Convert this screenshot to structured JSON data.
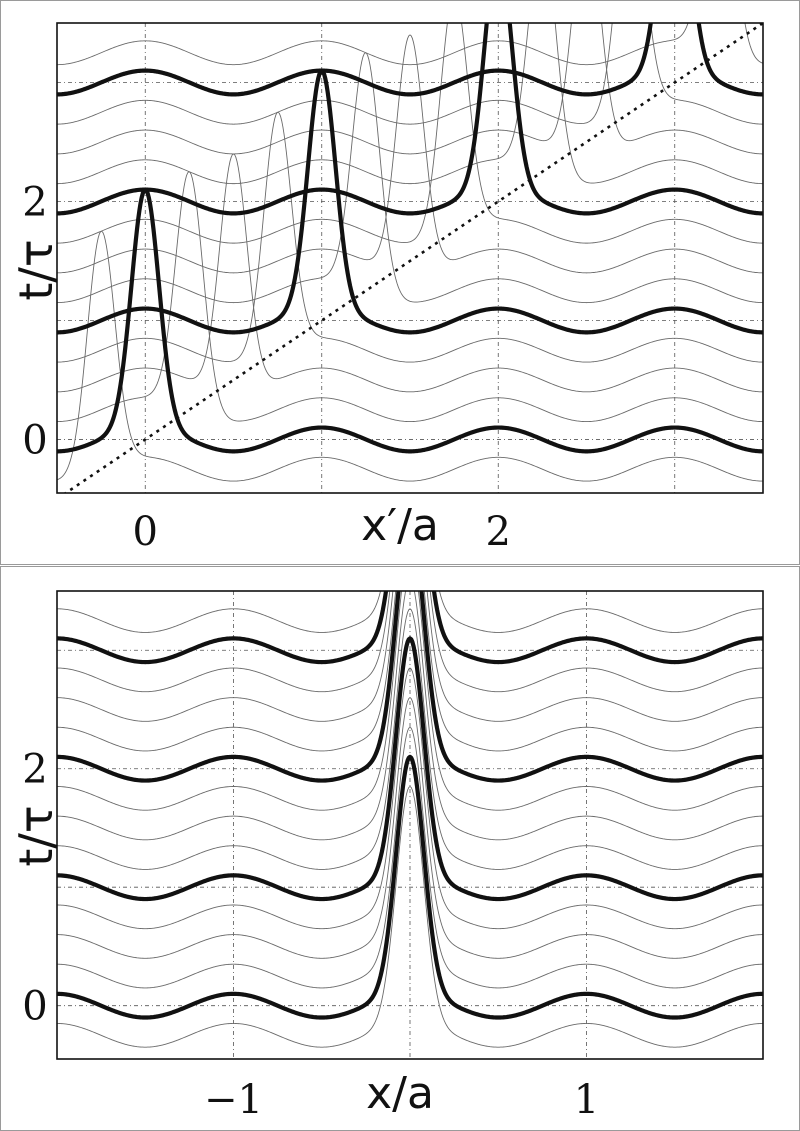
{
  "chart_data": [
    {
      "type": "line",
      "xlabel": "x′/a",
      "ylabel": "t/τ",
      "xlim": [
        -0.5,
        3.5
      ],
      "ylim": [
        -0.45,
        3.5
      ],
      "x_ticks": [
        {
          "value": 0,
          "label": "0"
        },
        {
          "value": 2,
          "label": "2"
        }
      ],
      "y_ticks": [
        {
          "value": 0,
          "label": "0"
        },
        {
          "value": 2,
          "label": "2"
        }
      ],
      "grid": true,
      "reference_line": {
        "style": "dotted",
        "from": [
          -0.5,
          -0.5
        ],
        "to": [
          3.5,
          3.5
        ]
      },
      "curves": {
        "baselines_thick": [
          0,
          1,
          2,
          3
        ],
        "baselines_thin": [
          -0.25,
          0.25,
          0.5,
          0.75,
          1.25,
          1.5,
          1.75,
          2.25,
          2.5,
          2.75,
          3.25
        ],
        "background_amplitude": 0.1,
        "background_period": 1,
        "peak_height": 2.0,
        "peak_width": 0.11,
        "peak_x_shift_per_unit_t": 1.0,
        "peak_centers_x": [
          -0.75,
          0,
          1,
          2,
          3
        ]
      }
    },
    {
      "type": "line",
      "xlabel": "x/a",
      "ylabel": "t/τ",
      "xlim": [
        -2,
        2
      ],
      "ylim": [
        -0.45,
        3.5
      ],
      "x_ticks": [
        {
          "value": -1,
          "label": "−1"
        },
        {
          "value": 1,
          "label": "1"
        }
      ],
      "y_ticks": [
        {
          "value": 0,
          "label": "0"
        },
        {
          "value": 2,
          "label": "2"
        }
      ],
      "grid": true,
      "curves": {
        "baselines_thick": [
          0,
          1,
          2,
          3
        ],
        "baselines_thin": [
          -0.25,
          0.25,
          0.5,
          0.75,
          1.25,
          1.5,
          1.75,
          2.25,
          2.5,
          2.75,
          3.25
        ],
        "background_amplitude": 0.1,
        "background_period": 1,
        "peak_height": 2.0,
        "peak_width": 0.11,
        "peak_x_shift_per_unit_t": 0,
        "peak_centers_x": [
          0
        ]
      }
    }
  ]
}
